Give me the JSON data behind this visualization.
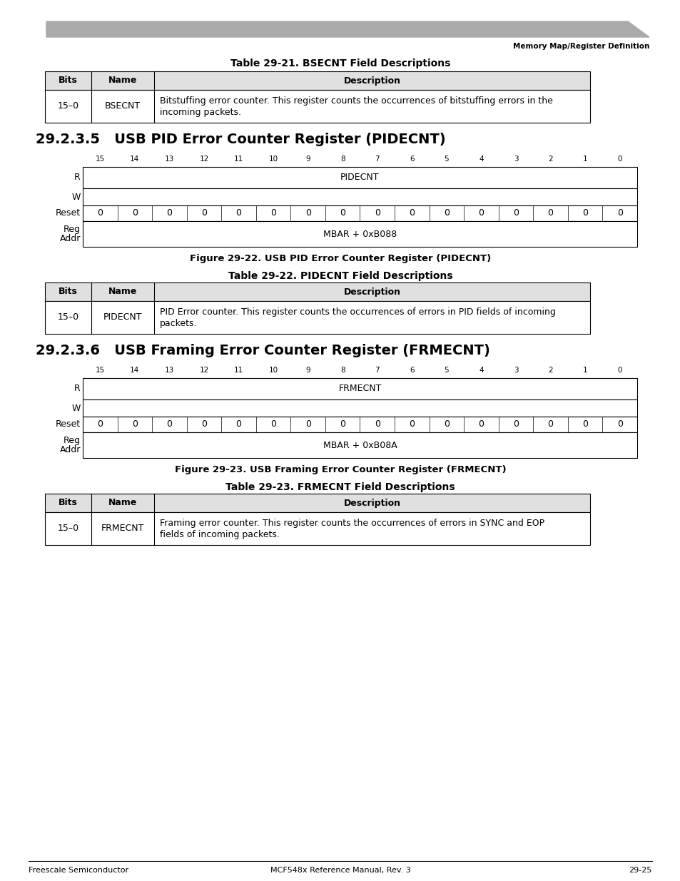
{
  "page_header_text": "Memory Map/Register Definition",
  "header_bar_color": "#999999",
  "table1_title": "Table 29-21. BSECNT Field Descriptions",
  "table1_row": [
    "15–0",
    "BSECNT",
    "Bitstuffing error counter. This register counts the occurrences of bitstuffing errors in the\nincoming packets."
  ],
  "section1_title": "29.2.3.5   USB PID Error Counter Register (PIDECNT)",
  "reg1_bits": [
    "15",
    "14",
    "13",
    "12",
    "11",
    "10",
    "9",
    "8",
    "7",
    "6",
    "5",
    "4",
    "3",
    "2",
    "1",
    "0"
  ],
  "reg1_r_label": "PIDECNT",
  "reg1_reset": [
    "0",
    "0",
    "0",
    "0",
    "0",
    "0",
    "0",
    "0",
    "0",
    "0",
    "0",
    "0",
    "0",
    "0",
    "0",
    "0"
  ],
  "reg1_addr": "MBAR + 0xB088",
  "reg1_figure": "Figure 29-22. USB PID Error Counter Register (PIDECNT)",
  "table2_title": "Table 29-22. PIDECNT Field Descriptions",
  "table2_row": [
    "15–0",
    "PIDECNT",
    "PID Error counter. This register counts the occurrences of errors in PID fields of incoming\npackets."
  ],
  "section2_title": "29.2.3.6   USB Framing Error Counter Register (FRMECNT)",
  "reg2_bits": [
    "15",
    "14",
    "13",
    "12",
    "11",
    "10",
    "9",
    "8",
    "7",
    "6",
    "5",
    "4",
    "3",
    "2",
    "1",
    "0"
  ],
  "reg2_r_label": "FRMECNT",
  "reg2_reset": [
    "0",
    "0",
    "0",
    "0",
    "0",
    "0",
    "0",
    "0",
    "0",
    "0",
    "0",
    "0",
    "0",
    "0",
    "0",
    "0"
  ],
  "reg2_addr": "MBAR + 0xB08A",
  "reg2_figure": "Figure 29-23. USB Framing Error Counter Register (FRMECNT)",
  "table3_title": "Table 29-23. FRMECNT Field Descriptions",
  "table3_row": [
    "15–0",
    "FRMECNT",
    "Framing error counter. This register counts the occurrences of errors in SYNC and EOP\nfields of incoming packets."
  ],
  "footer_left": "Freescale Semiconductor",
  "footer_center": "MCF548x Reference Manual, Rev. 3",
  "footer_right": "29-25",
  "bg_color": "#ffffff",
  "header_fill": "#e0e0e0"
}
